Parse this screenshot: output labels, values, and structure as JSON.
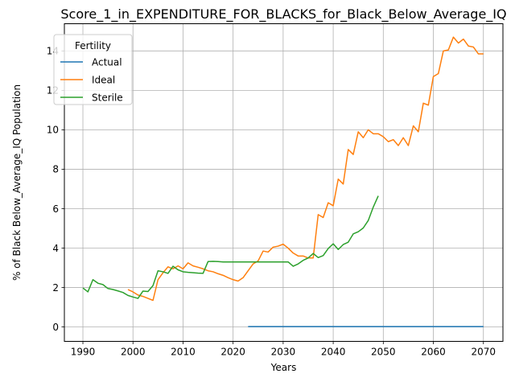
{
  "chart_data": {
    "type": "line",
    "title": "Score_1_in_EXPENDITURE_FOR_BLACKS_for_Black_Below_Average_IQ",
    "xlabel": "Years",
    "ylabel": "% of Black Below_Average_IQ Population",
    "xlim": [
      1986.3,
      2073.9
    ],
    "ylim": [
      -0.73,
      15.38
    ],
    "xticks": [
      1990,
      2000,
      2010,
      2020,
      2030,
      2040,
      2050,
      2060,
      2070
    ],
    "yticks": [
      0,
      2,
      4,
      6,
      8,
      10,
      12,
      14
    ],
    "grid": true,
    "legend": {
      "title": "Fertility",
      "placement": "upper-left"
    },
    "series": [
      {
        "name": "Actual",
        "color": "#1f77b4",
        "x": [
          2023,
          2070
        ],
        "y": [
          0.02,
          0.02
        ]
      },
      {
        "name": "Ideal",
        "color": "#ff7f0e",
        "x": [
          1999,
          2000,
          2001,
          2002,
          2003,
          2004,
          2005,
          2006,
          2007,
          2008,
          2009,
          2010,
          2011,
          2012,
          2013,
          2014,
          2015,
          2016,
          2017,
          2018,
          2019,
          2020,
          2021,
          2022,
          2023,
          2024,
          2025,
          2026,
          2027,
          2028,
          2029,
          2030,
          2031,
          2032,
          2033,
          2034,
          2035,
          2036,
          2037,
          2038,
          2039,
          2040,
          2041,
          2042,
          2043,
          2044,
          2045,
          2046,
          2047,
          2048,
          2049,
          2050,
          2051,
          2052,
          2053,
          2054,
          2055,
          2056,
          2057,
          2058,
          2059,
          2060,
          2061,
          2062,
          2063,
          2064,
          2065,
          2066,
          2067,
          2068,
          2069,
          2070
        ],
        "y": [
          1.9,
          1.78,
          1.62,
          1.55,
          1.45,
          1.35,
          2.4,
          2.75,
          3.05,
          2.95,
          3.1,
          2.95,
          3.25,
          3.1,
          3.03,
          2.95,
          2.85,
          2.8,
          2.7,
          2.62,
          2.5,
          2.4,
          2.33,
          2.5,
          2.85,
          3.2,
          3.35,
          3.85,
          3.8,
          4.05,
          4.1,
          4.2,
          4.0,
          3.75,
          3.6,
          3.6,
          3.5,
          3.5,
          5.7,
          5.55,
          6.3,
          6.15,
          7.5,
          7.25,
          9.0,
          8.75,
          9.9,
          9.6,
          10.0,
          9.8,
          9.8,
          9.65,
          9.4,
          9.5,
          9.2,
          9.6,
          9.2,
          10.2,
          9.9,
          11.35,
          11.25,
          12.7,
          12.85,
          14.0,
          14.05,
          14.7,
          14.4,
          14.6,
          14.25,
          14.2,
          13.85,
          13.85
        ]
      },
      {
        "name": "Sterile",
        "color": "#2ca02c",
        "x": [
          1990,
          1991,
          1992,
          1993,
          1994,
          1995,
          1996,
          1997,
          1998,
          1999,
          2000,
          2001,
          2002,
          2003,
          2004,
          2005,
          2006,
          2007,
          2008,
          2009,
          2010,
          2011,
          2012,
          2013,
          2014,
          2015,
          2016,
          2017,
          2018,
          2019,
          2020,
          2021,
          2022,
          2023,
          2024,
          2025,
          2026,
          2027,
          2028,
          2029,
          2030,
          2031,
          2032,
          2033,
          2034,
          2035,
          2036,
          2037,
          2038,
          2039,
          2040,
          2041,
          2042,
          2043,
          2044,
          2045,
          2046,
          2047,
          2048,
          2049
        ],
        "y": [
          1.98,
          1.78,
          2.4,
          2.22,
          2.15,
          1.95,
          1.9,
          1.83,
          1.75,
          1.6,
          1.52,
          1.45,
          1.82,
          1.8,
          2.1,
          2.85,
          2.8,
          2.72,
          3.08,
          2.9,
          2.8,
          2.77,
          2.75,
          2.73,
          2.72,
          3.32,
          3.33,
          3.32,
          3.3,
          3.3,
          3.3,
          3.3,
          3.3,
          3.3,
          3.3,
          3.3,
          3.3,
          3.3,
          3.3,
          3.3,
          3.3,
          3.3,
          3.08,
          3.2,
          3.38,
          3.5,
          3.73,
          3.52,
          3.62,
          3.98,
          4.22,
          3.93,
          4.18,
          4.3,
          4.72,
          4.83,
          5.02,
          5.4,
          6.08,
          6.65
        ]
      }
    ]
  }
}
